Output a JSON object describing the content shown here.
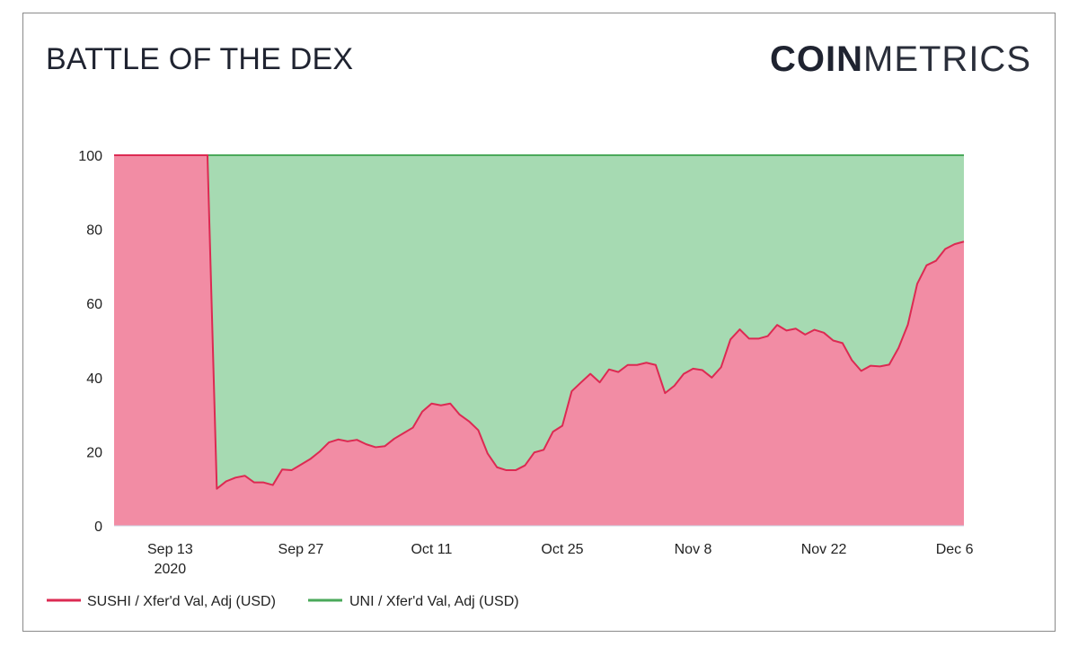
{
  "header": {
    "title": "BATTLE OF THE DEX",
    "brand_bold": "COIN",
    "brand_light": "METRICS"
  },
  "chart_data": {
    "type": "area",
    "stacked": true,
    "ylim": [
      0,
      100
    ],
    "yticks": [
      0,
      20,
      40,
      60,
      80,
      100
    ],
    "xticks": [
      "Sep 13",
      "Sep 27",
      "Oct 11",
      "Oct 25",
      "Nov 8",
      "Nov 22",
      "Dec 6"
    ],
    "xtick_sub": {
      "Sep 13": "2020"
    },
    "x_start": "Sep 7",
    "x_end": "Dec 6",
    "grid": "horizontal",
    "legend_position": "bottom-left",
    "series": [
      {
        "name": "SUSHI / Xfer'd Val, Adj (USD)",
        "color": "#dc2a52",
        "fill": "#f28ca4",
        "values": [
          100,
          100,
          100,
          100,
          100,
          100,
          100,
          100,
          100,
          100,
          100,
          10,
          12,
          13,
          13.5,
          11.7,
          11.7,
          11,
          15.2,
          15,
          16.5,
          18,
          20,
          22.5,
          23.3,
          22.8,
          23.2,
          22,
          21.2,
          21.5,
          23.5,
          25,
          26.5,
          30.8,
          33,
          32.5,
          33,
          30,
          28.2,
          25.8,
          19.5,
          15.8,
          15,
          15,
          16.3,
          19.8,
          20.5,
          25.4,
          27,
          36.3,
          38.7,
          41,
          38.7,
          42.2,
          41.5,
          43.4,
          43.4,
          44,
          43.4,
          35.8,
          37.8,
          41,
          42.4,
          42,
          40,
          42.8,
          50.3,
          53,
          50.5,
          50.5,
          51.2,
          54.2,
          52.7,
          53.2,
          51.6,
          52.9,
          52.1,
          50,
          49.3,
          44.7,
          41.8,
          43.2,
          43,
          43.5,
          48,
          54.3,
          65.3,
          70.3,
          71.5,
          74.7,
          76,
          76.7
        ]
      },
      {
        "name": "UNI / Xfer'd Val, Adj (USD)",
        "color": "#4aa95a",
        "fill": "#a6dab2",
        "values_note": "complement to 100"
      }
    ]
  },
  "legend": {
    "sushi": "SUSHI / Xfer'd Val, Adj (USD)",
    "uni": "UNI / Xfer'd Val, Adj (USD)"
  }
}
